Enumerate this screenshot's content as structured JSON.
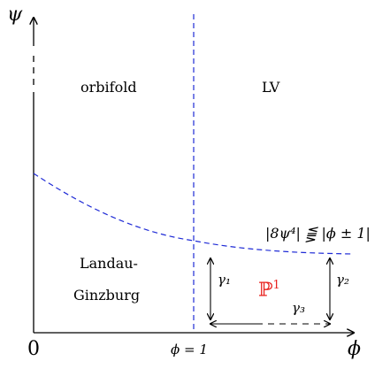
{
  "axes": {
    "psi_label": "ψ",
    "phi_label": "ϕ",
    "origin_label": "0",
    "phi_tick_label": "ϕ = 1"
  },
  "regions": {
    "orbifold": "orbifold",
    "lv": "LV",
    "landau_line1": "Landau-",
    "landau_line2": "Ginzburg",
    "p1": "ℙ",
    "p1_sup": "1"
  },
  "boundary_label": "|8ψ⁴| ⪋ |ϕ ± 1|",
  "paths": {
    "gamma1": "γ₁",
    "gamma2": "γ₂",
    "gamma3": "γ₃"
  },
  "colors": {
    "axis": "#000000",
    "dashed_lines": "#1f2bd6",
    "p1": "#e8221e"
  }
}
